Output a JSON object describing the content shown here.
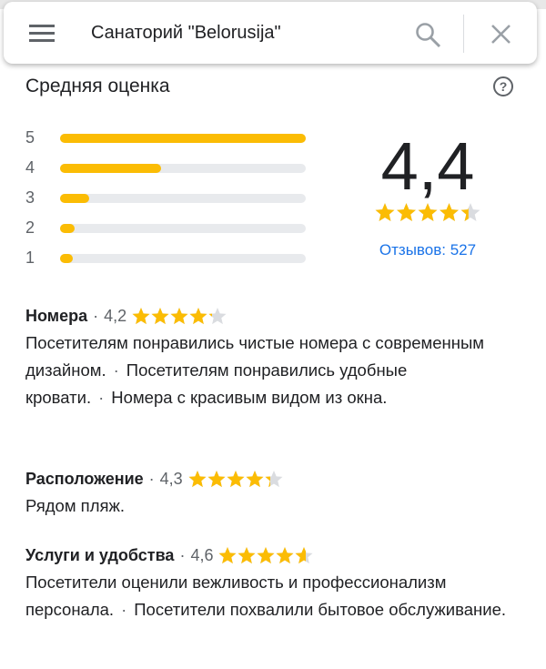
{
  "search": {
    "query": "Санаторий \"Belorusija\""
  },
  "summary": {
    "title": "Средняя оценка",
    "histogram": {
      "categories": [
        "5",
        "4",
        "3",
        "2",
        "1"
      ],
      "values": [
        100,
        41,
        12,
        6,
        5
      ]
    },
    "rating": {
      "value": 4.4,
      "label": "4,4"
    },
    "reviews": "Отзывов: 527"
  },
  "separator": "·",
  "sections": [
    {
      "title": "Номера",
      "rating": {
        "value": 4.2,
        "label": "4,2"
      },
      "sentences": [
        "Посетителям понравились чистые номера с современным дизайном.",
        "Посетителям понравились удобные кровати.",
        "Номера с красивым видом из окна."
      ]
    },
    {
      "title": "Расположение",
      "rating": {
        "value": 4.3,
        "label": "4,3"
      },
      "sentences": [
        "Рядом пляж."
      ]
    },
    {
      "title": "Услуги и удобства",
      "rating": {
        "value": 4.6,
        "label": "4,6"
      },
      "sentences": [
        "Посетители оценили вежливость и профессионализм персонала.",
        "Посетители похвалили бытовое обслуживание."
      ]
    }
  ]
}
